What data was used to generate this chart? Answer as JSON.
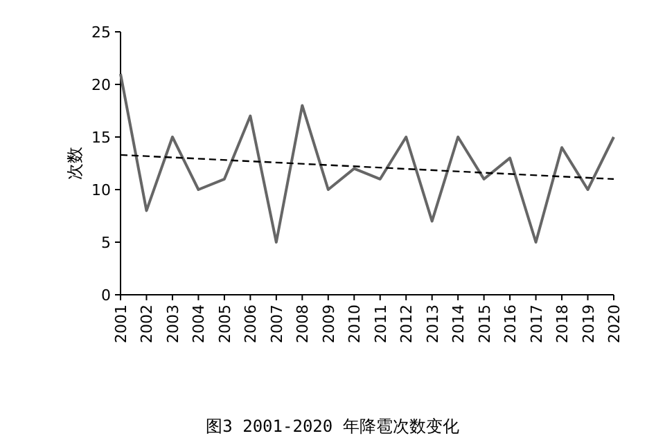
{
  "chart_data": {
    "type": "line",
    "ylabel": "次数",
    "x": [
      2001,
      2002,
      2003,
      2004,
      2005,
      2006,
      2007,
      2008,
      2009,
      2010,
      2011,
      2012,
      2013,
      2014,
      2015,
      2016,
      2017,
      2018,
      2019,
      2020
    ],
    "xlim": [
      2001,
      2020
    ],
    "xticks": [
      2001,
      2002,
      2003,
      2004,
      2005,
      2006,
      2007,
      2008,
      2009,
      2010,
      2011,
      2012,
      2013,
      2014,
      2015,
      2016,
      2017,
      2018,
      2019,
      2020
    ],
    "ylim": [
      0,
      25
    ],
    "yticks": [
      0,
      5,
      10,
      15,
      20,
      25
    ],
    "series": [
      {
        "color": "#666666",
        "values": [
          21,
          8,
          15,
          10,
          11,
          17,
          5,
          18,
          10,
          12,
          11,
          15,
          7,
          15,
          11,
          13,
          5,
          14,
          10,
          15
        ]
      },
      {
        "type": "line",
        "x": [
          2001,
          2020
        ],
        "values": [
          13.3,
          11.0
        ],
        "color": "#000000",
        "line_style": "dashed"
      }
    ],
    "annotations": [
      "图3 2001-2020 年降雹次数变化"
    ]
  }
}
